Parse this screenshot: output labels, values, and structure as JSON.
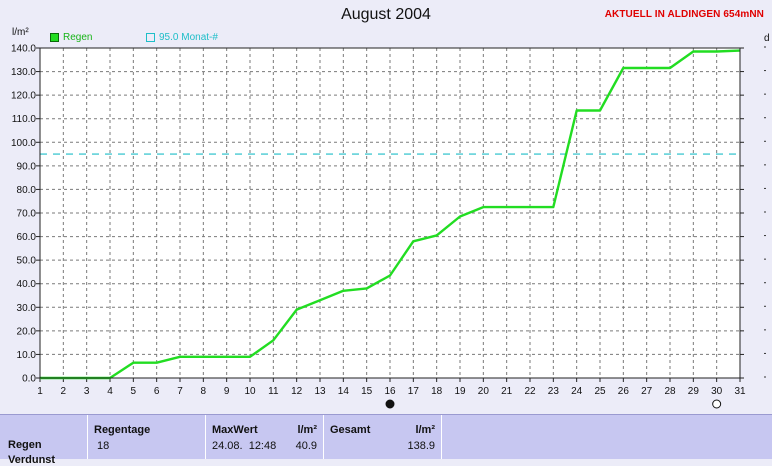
{
  "chart_data": {
    "type": "line",
    "title": "August 2004",
    "station": "AKTUELL IN ALDINGEN 654mNN",
    "ylabel": "l/m²",
    "ylabel_right": "d",
    "ylim": [
      0,
      140
    ],
    "yticks": [
      "0.0",
      "10.0",
      "20.0",
      "30.0",
      "40.0",
      "50.0",
      "60.0",
      "70.0",
      "80.0",
      "90.0",
      "100.0",
      "110.0",
      "120.0",
      "130.0",
      "140.0"
    ],
    "xlim": [
      1,
      31
    ],
    "xticks": [
      "1",
      "2",
      "3",
      "4",
      "5",
      "6",
      "7",
      "8",
      "9",
      "10",
      "11",
      "12",
      "13",
      "14",
      "15",
      "16",
      "17",
      "18",
      "19",
      "20",
      "21",
      "22",
      "23",
      "24",
      "25",
      "26",
      "27",
      "28",
      "29",
      "30",
      "31"
    ],
    "grid": true,
    "legend_position": "top-left",
    "series": [
      {
        "name": "Regen",
        "color": "#22dd22",
        "x": [
          1,
          2,
          3,
          4,
          5,
          6,
          7,
          8,
          9,
          10,
          11,
          12,
          13,
          14,
          15,
          16,
          17,
          18,
          19,
          20,
          21,
          22,
          23,
          24,
          25,
          26,
          27,
          28,
          29,
          30,
          31
        ],
        "values": [
          0,
          0,
          0,
          0,
          6.5,
          6.5,
          9,
          9,
          9,
          9,
          16,
          29,
          33,
          37,
          38,
          43.5,
          58,
          60.5,
          68.5,
          72.5,
          72.5,
          72.5,
          72.5,
          113.5,
          113.5,
          131.5,
          131.5,
          131.5,
          138.5,
          138.5,
          138.9
        ]
      },
      {
        "name": "95.0 Monat-#",
        "color": "#1ebec8",
        "dashed": true,
        "constant": 95
      }
    ],
    "moon_markers": [
      {
        "day": 16,
        "phase": "new-moon"
      },
      {
        "day": 30,
        "phase": "full-moon"
      }
    ]
  },
  "summary": {
    "row_label": "Regen",
    "row_label_2": "Verdunst",
    "regentage_header": "Regentage",
    "regentage_value": "18",
    "maxwert_header": "MaxWert",
    "maxwert_unit": "l/m²",
    "maxwert_date": "24.08.  12:48",
    "maxwert_value": "40.9",
    "gesamt_header": "Gesamt",
    "gesamt_unit": "l/m²",
    "gesamt_value": "138.9"
  },
  "colors": {
    "background": "#ececf8",
    "plot_background": "#ffffff",
    "grid": "#7a7a7a",
    "rain_line": "#22dd22",
    "reference_line": "#1ebec8",
    "station_text": "#e00000",
    "summary_panel": "#c7c7f1"
  }
}
